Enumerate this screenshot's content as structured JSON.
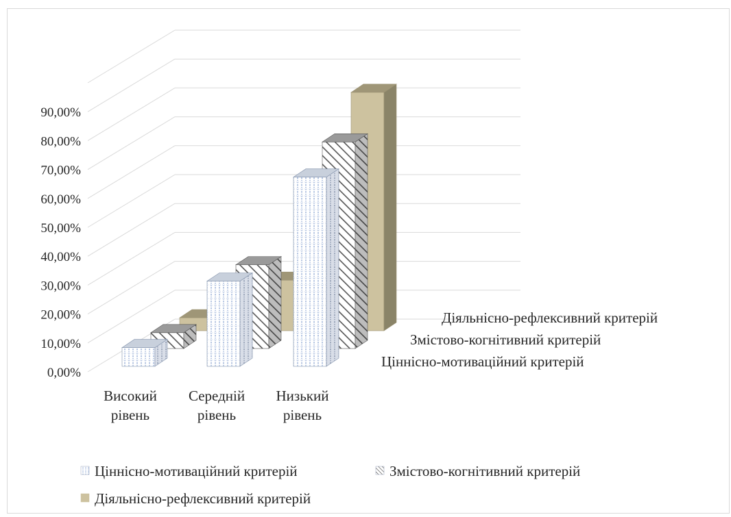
{
  "chart_data": {
    "type": "bar",
    "subtype": "3d-column",
    "title": "",
    "xlabel": "",
    "ylabel": "",
    "ylim": [
      0,
      0.9
    ],
    "yticks": [
      "0,00%",
      "10,00%",
      "20,00%",
      "30,00%",
      "40,00%",
      "50,00%",
      "60,00%",
      "70,00%",
      "80,00%",
      "90,00%"
    ],
    "categories": [
      "Високий рівень",
      "Середній рівень",
      "Низький рівень"
    ],
    "category_lines": [
      [
        "Високий",
        "рівень"
      ],
      [
        "Середній",
        "рівень"
      ],
      [
        "Низький",
        "рівень"
      ]
    ],
    "series": [
      {
        "name": "Ціннісно-мотиваційний критерій",
        "values": [
          0.065,
          0.295,
          0.655
        ],
        "color": "#ffffff",
        "pattern": "grid-dots-blue"
      },
      {
        "name": "Змістово-когнітивний критерій",
        "values": [
          0.055,
          0.29,
          0.715
        ],
        "color": "#ffffff",
        "pattern": "diagonal-dark"
      },
      {
        "name": "Діяльнісно-рефлексивний критерій",
        "values": [
          0.045,
          0.175,
          0.825
        ],
        "color": "#cdc29f",
        "pattern": "solid"
      }
    ],
    "grid": true,
    "legend": "bottom"
  }
}
